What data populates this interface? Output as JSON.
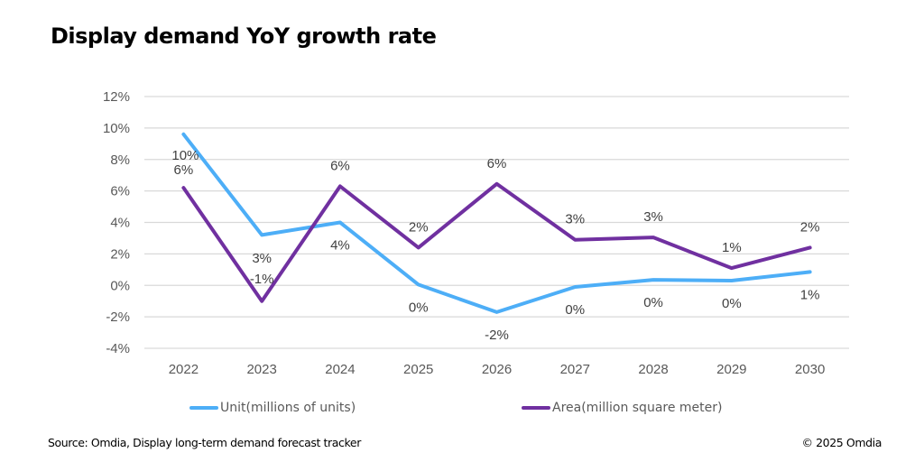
{
  "chart_data": {
    "type": "line",
    "title": "Display demand YoY growth rate",
    "xlabel": "",
    "ylabel": "",
    "x": [
      "2022",
      "2023",
      "2024",
      "2025",
      "2026",
      "2027",
      "2028",
      "2029",
      "2030"
    ],
    "ylim": [
      -4,
      12
    ],
    "yticks": [
      -4,
      -2,
      0,
      2,
      4,
      6,
      8,
      10,
      12
    ],
    "ytick_labels": [
      "-4%",
      "-2%",
      "0%",
      "2%",
      "4%",
      "6%",
      "8%",
      "10%",
      "12%"
    ],
    "grid": true,
    "legend_position": "bottom",
    "series": [
      {
        "name": "Unit(millions of units)",
        "color": "#4DAEF7",
        "values": [
          9.6,
          3.2,
          4.0,
          0.05,
          -1.7,
          -0.1,
          0.35,
          0.3,
          0.85
        ],
        "labels": [
          "10%",
          "3%",
          "4%",
          "0%",
          "-2%",
          "0%",
          "0%",
          "0%",
          "1%"
        ],
        "label_position": [
          "above",
          "below",
          "below",
          "below",
          "below",
          "below",
          "below",
          "below",
          "below"
        ]
      },
      {
        "name": "Area(million square meter)",
        "color": "#7030A0",
        "values": [
          6.2,
          -1.0,
          6.3,
          2.4,
          6.45,
          2.9,
          3.05,
          1.1,
          2.4
        ],
        "labels": [
          "6%",
          "-1%",
          "6%",
          "2%",
          "6%",
          "3%",
          "3%",
          "1%",
          "2%"
        ],
        "label_position": [
          "above",
          "above",
          "above",
          "above",
          "above",
          "above",
          "above",
          "above",
          "above"
        ]
      }
    ]
  },
  "footer": {
    "source": "Source: Omdia, Display long-term demand forecast tracker",
    "copyright": "© 2025 Omdia"
  }
}
